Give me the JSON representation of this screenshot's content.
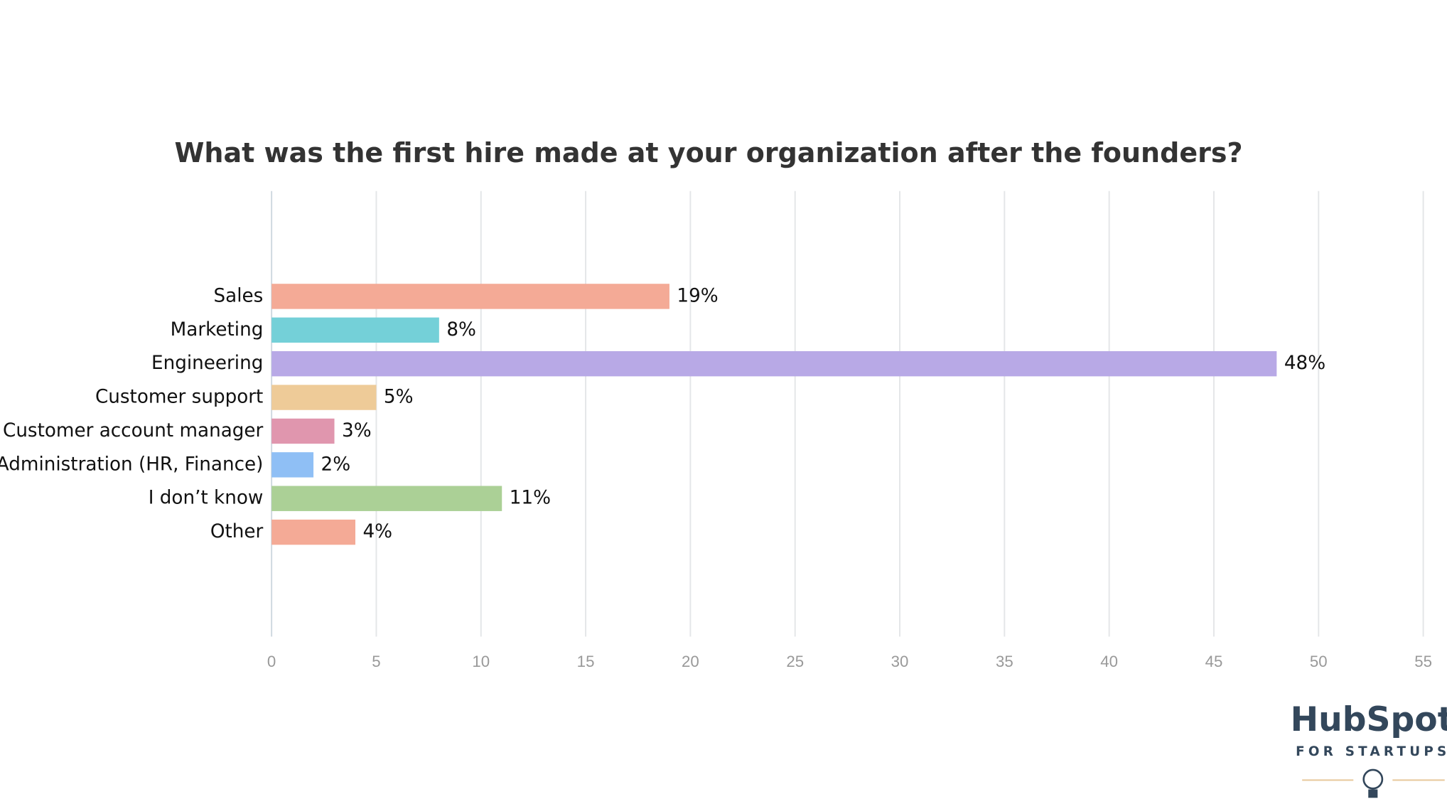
{
  "chart_data": {
    "type": "hbar",
    "title": "What was the first hire made at your organization after the founders?",
    "categories": [
      "Sales",
      "Marketing",
      "Engineering",
      "Customer support",
      "Customer account manager",
      "Administration (HR, Finance)",
      "I don’t know",
      "Other"
    ],
    "values": [
      19,
      8,
      48,
      5,
      3,
      2,
      11,
      4
    ],
    "value_labels": [
      "19%",
      "8%",
      "48%",
      "5%",
      "3%",
      "2%",
      "11%",
      "4%"
    ],
    "colors": [
      "#f4aa96",
      "#74d0d8",
      "#b8a9e6",
      "#eecb98",
      "#e096ae",
      "#8fbff5",
      "#abd096",
      "#f4aa96"
    ],
    "xlim": [
      0,
      55
    ],
    "xticks": [
      0,
      5,
      10,
      15,
      20,
      25,
      30,
      35,
      40,
      45,
      50,
      55
    ],
    "grid": true
  },
  "logo": {
    "name": "HubSpot",
    "tagline": "FOR STARTUPS"
  }
}
